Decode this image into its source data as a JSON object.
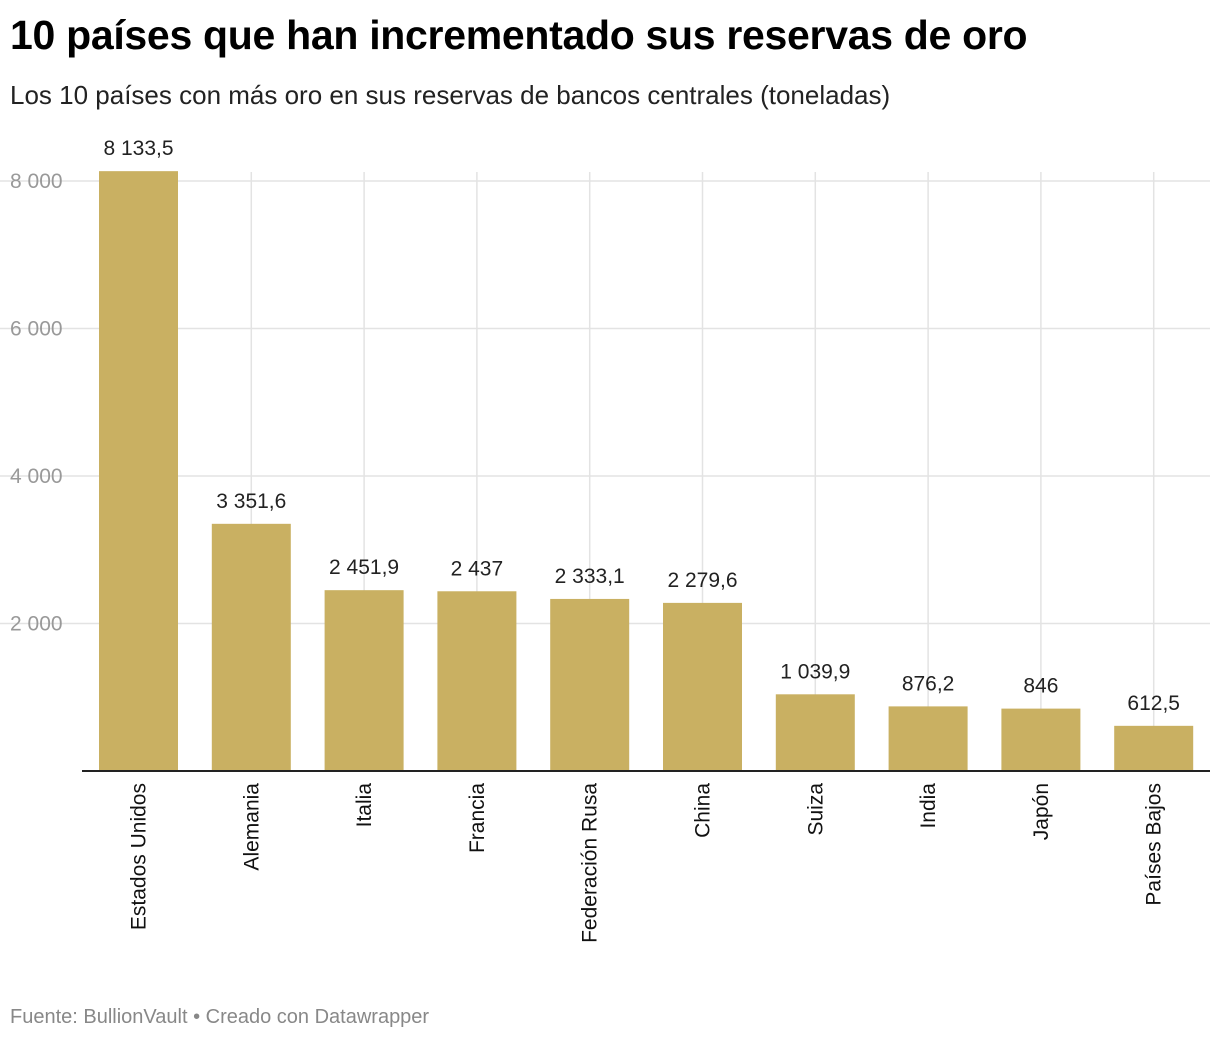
{
  "chart_data": {
    "type": "bar",
    "title": "10 países que han incrementado sus reservas de oro",
    "subtitle": "Los 10 países con más oro en sus reservas de bancos centrales (toneladas)",
    "categories": [
      "Estados Unidos",
      "Alemania",
      "Italia",
      "Francia",
      "Federación Rusa",
      "China",
      "Suiza",
      "India",
      "Japón",
      "Países Bajos"
    ],
    "values": [
      8133.5,
      3351.6,
      2451.9,
      2437,
      2333.1,
      2279.6,
      1039.9,
      876.2,
      846,
      612.5
    ],
    "value_labels": [
      "8 133,5",
      "3 351,6",
      "2 451,9",
      "2 437",
      "2 333,1",
      "2 279,6",
      "1 039,9",
      "876,2",
      "846",
      "612,5"
    ],
    "yticks": [
      2000,
      4000,
      6000,
      8000
    ],
    "ytick_labels": [
      "2 000",
      "4 000",
      "6 000",
      "8 000"
    ],
    "ylim": [
      0,
      8000
    ],
    "xlabel": "",
    "ylabel": "",
    "grid": true,
    "bar_color": "#c9b062",
    "source": "Fuente: BullionVault • Creado con Datawrapper"
  }
}
